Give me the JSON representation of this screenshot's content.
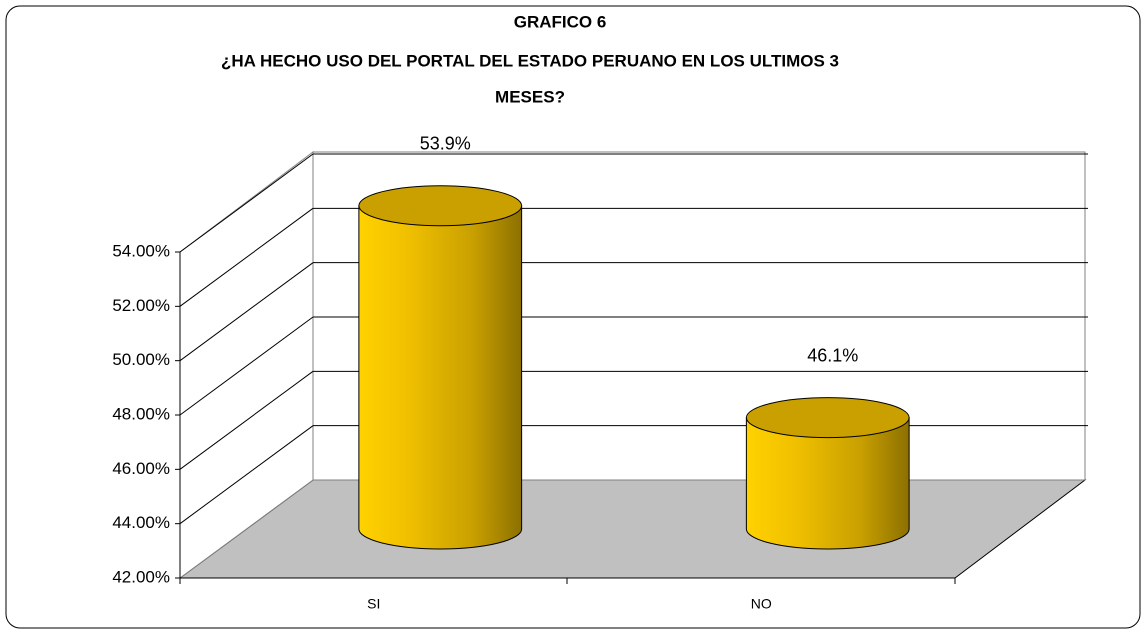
{
  "chart_data": {
    "type": "bar3d",
    "title": [
      "GRAFICO 6",
      "¿HA HECHO USO DEL PORTAL DEL ESTADO PERUANO EN LOS ULTIMOS 3",
      "MESES?"
    ],
    "categories": [
      "SI",
      "NO"
    ],
    "values": [
      53.9,
      46.1
    ],
    "value_labels": [
      "53.9%",
      "46.1%"
    ],
    "color": "#ffcc00",
    "ylim": [
      42,
      54
    ],
    "yticks": [
      {
        "value": 42,
        "label": "42.00%"
      },
      {
        "value": 44,
        "label": "44.00%"
      },
      {
        "value": 46,
        "label": "46.00%"
      },
      {
        "value": 48,
        "label": "48.00%"
      },
      {
        "value": 50,
        "label": "50.00%"
      },
      {
        "value": 52,
        "label": "52.00%"
      },
      {
        "value": 54,
        "label": "54.00%"
      }
    ],
    "grid": true
  }
}
